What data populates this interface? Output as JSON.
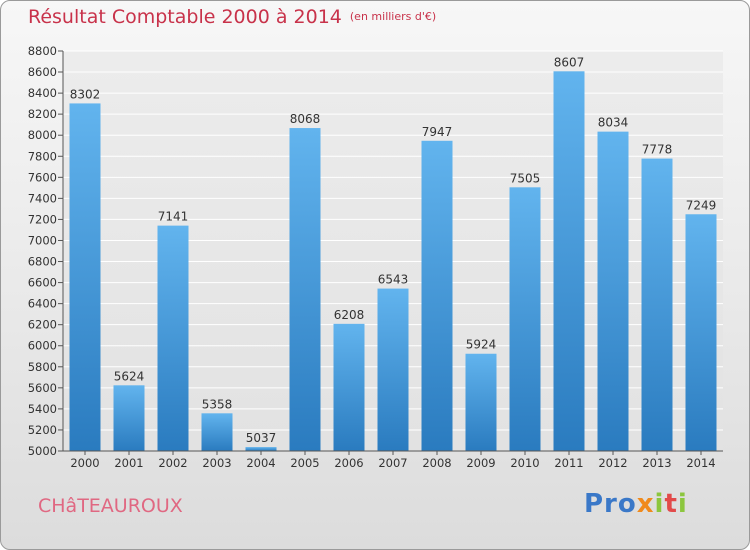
{
  "header": {
    "title": "Résultat Comptable 2000 à 2014",
    "unit": "(en milliers d'€)"
  },
  "footer": {
    "city": "CHâTEAUROUX",
    "logo": "Proxiti"
  },
  "colors": {
    "title": "#c8324a",
    "city": "#e06882",
    "bar_top": "#62b4ee",
    "bar_bottom": "#2a7bbf"
  },
  "chart_data": {
    "type": "bar",
    "title": "Résultat Comptable 2000 à 2014",
    "xlabel": "",
    "ylabel": "",
    "categories": [
      "2000",
      "2001",
      "2002",
      "2003",
      "2004",
      "2005",
      "2006",
      "2007",
      "2008",
      "2009",
      "2010",
      "2011",
      "2012",
      "2013",
      "2014"
    ],
    "values": [
      8302,
      5624,
      7141,
      5358,
      5037,
      8068,
      6208,
      6543,
      7947,
      5924,
      7505,
      8607,
      8034,
      7778,
      7249
    ],
    "ylim": [
      5000,
      8800
    ],
    "yticks": [
      5000,
      5200,
      5400,
      5600,
      5800,
      6000,
      6200,
      6400,
      6600,
      6800,
      7000,
      7200,
      7400,
      7600,
      7800,
      8000,
      8200,
      8400,
      8600,
      8800
    ],
    "grid": true,
    "legend": "none"
  }
}
